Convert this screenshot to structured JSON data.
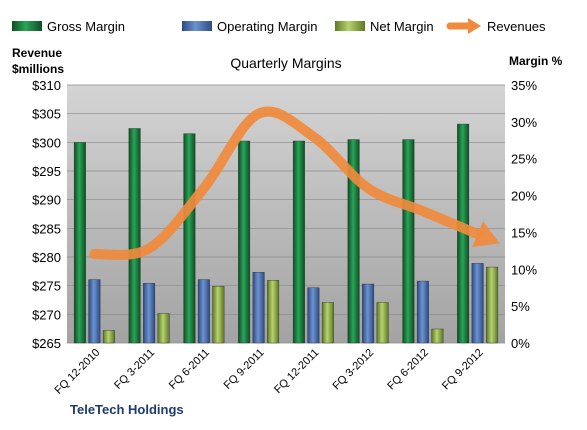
{
  "chart_data": {
    "type": "bar",
    "title": "Quarterly Margins",
    "categories": [
      "FQ 12-2010",
      "FQ 3-2011",
      "FQ 6-2011",
      "FQ 9-2011",
      "FQ 12-2011",
      "FQ 3-2012",
      "FQ 6-2012",
      "FQ 9-2012"
    ],
    "series": [
      {
        "name": "Gross Margin",
        "type": "bar",
        "axis": "right",
        "color": "#1e7b3c",
        "values": [
          27.2,
          29.1,
          28.4,
          27.4,
          27.4,
          27.6,
          27.6,
          29.7
        ]
      },
      {
        "name": "Operating Margin",
        "type": "bar",
        "axis": "right",
        "color": "#4a70b0",
        "values": [
          8.6,
          8.1,
          8.6,
          9.6,
          7.5,
          8.0,
          8.4,
          10.8
        ]
      },
      {
        "name": "Net Margin",
        "type": "bar",
        "axis": "right",
        "color": "#8fb048",
        "values": [
          1.7,
          4.0,
          7.7,
          8.5,
          5.5,
          5.5,
          1.9,
          10.3
        ]
      },
      {
        "name": "Revenues",
        "type": "line",
        "axis": "left",
        "color": "#f08a3c",
        "values": [
          280.5,
          281.5,
          292,
          305,
          301,
          292,
          288,
          284
        ]
      }
    ],
    "y_left": {
      "label": "Revenue\n$millions",
      "min": 265,
      "max": 310,
      "step": 5,
      "prefix": "$"
    },
    "y_right": {
      "label": "Margin %",
      "min": 0,
      "max": 35,
      "step": 5,
      "suffix": "%"
    },
    "grid": true,
    "legend_position": "top"
  },
  "footer": {
    "company": "TeleTech Holdings"
  }
}
